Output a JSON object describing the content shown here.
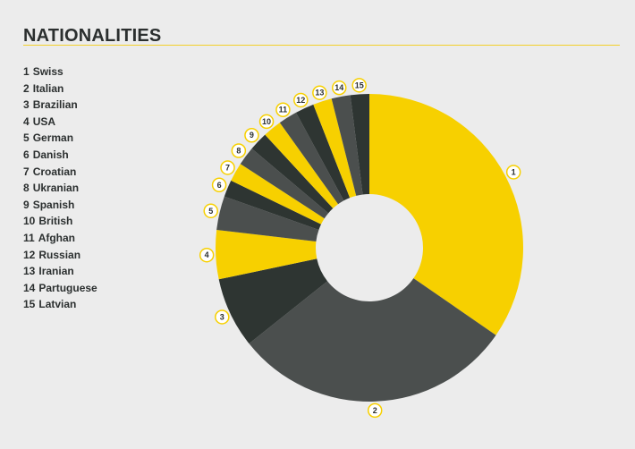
{
  "title": "NATIONALITIES",
  "colors": {
    "accent": "#f7d000",
    "dark": "#2e3532",
    "medium": "#4b4f4e",
    "background": "#ececec",
    "hole": "#ececec"
  },
  "chart_data": {
    "type": "pie",
    "variant": "donut",
    "title": "NATIONALITIES",
    "legend_position": "left",
    "slices": [
      {
        "id": "1",
        "label": "Swiss",
        "value": 35,
        "color": "accent"
      },
      {
        "id": "2",
        "label": "Italian",
        "value": 30,
        "color": "medium"
      },
      {
        "id": "3",
        "label": "Brazilian",
        "value": 7.5,
        "color": "dark"
      },
      {
        "id": "4",
        "label": "USA",
        "value": 5.2,
        "color": "accent"
      },
      {
        "id": "5",
        "label": "German",
        "value": 3.6,
        "color": "medium"
      },
      {
        "id": "6",
        "label": "Danish",
        "value": 1.8,
        "color": "dark"
      },
      {
        "id": "7",
        "label": "Croatian",
        "value": 2.0,
        "color": "accent"
      },
      {
        "id": "8",
        "label": "Ukranian",
        "value": 2.0,
        "color": "medium"
      },
      {
        "id": "9",
        "label": "Spanish",
        "value": 2.0,
        "color": "dark"
      },
      {
        "id": "10",
        "label": "British",
        "value": 2.0,
        "color": "accent"
      },
      {
        "id": "11",
        "label": "Afghan",
        "value": 2.0,
        "color": "medium"
      },
      {
        "id": "12",
        "label": "Russian",
        "value": 2.0,
        "color": "dark"
      },
      {
        "id": "13",
        "label": "Iranian",
        "value": 2.0,
        "color": "accent"
      },
      {
        "id": "14",
        "label": "Partuguese",
        "value": 2.0,
        "color": "medium"
      },
      {
        "id": "15",
        "label": "Latvian",
        "value": 2.0,
        "color": "dark"
      }
    ]
  }
}
